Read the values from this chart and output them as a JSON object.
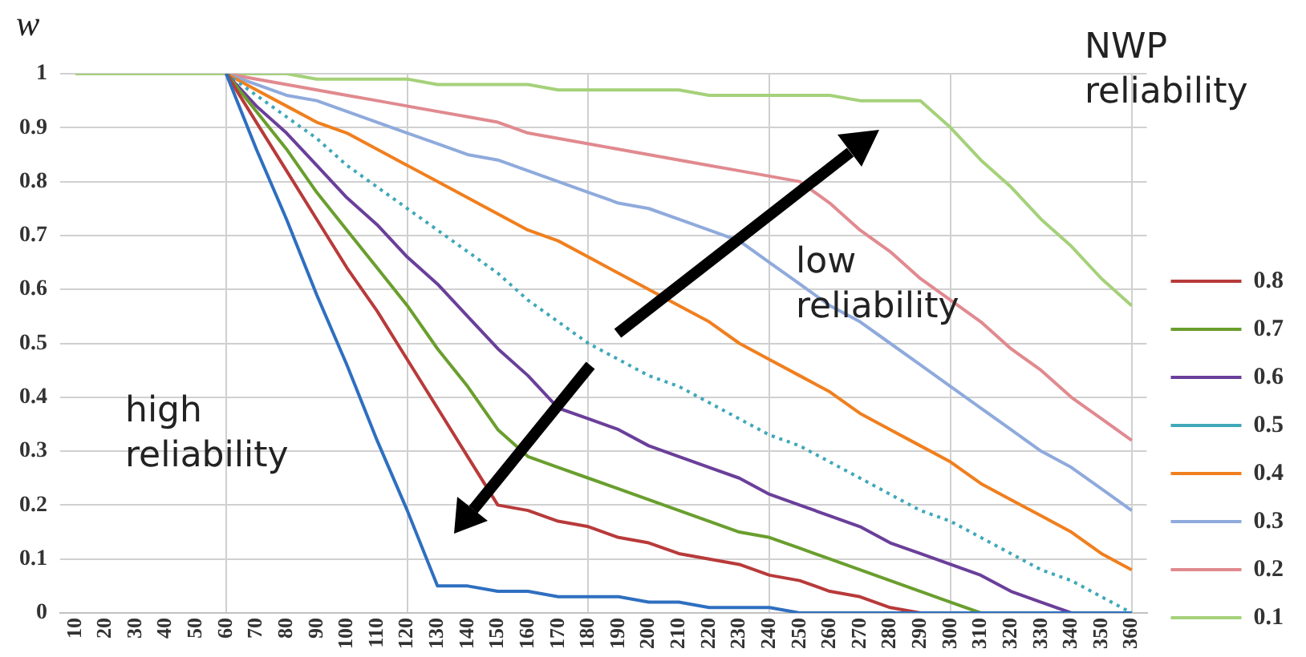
{
  "chart_data": {
    "type": "line",
    "ylabel": "w",
    "legend_title": "NWP reliability",
    "annotations": [
      "high reliability",
      "low reliability"
    ],
    "categories": [
      "10",
      "20",
      "30",
      "40",
      "50",
      "60",
      "70",
      "80",
      "90",
      "100",
      "110",
      "120",
      "130",
      "140",
      "150",
      "160",
      "170",
      "180",
      "190",
      "200",
      "210",
      "220",
      "230",
      "240",
      "250",
      "260",
      "270",
      "280",
      "290",
      "300",
      "310",
      "320",
      "330",
      "340",
      "350",
      "360"
    ],
    "series": [
      {
        "color": "#2e6fc0",
        "values": [
          null,
          null,
          null,
          null,
          null,
          1,
          0.86,
          0.73,
          0.59,
          0.46,
          0.32,
          0.19,
          0.05,
          0.05,
          0.04,
          0.04,
          0.03,
          0.03,
          0.03,
          0.02,
          0.02,
          0.01,
          0.01,
          0.01,
          0,
          0,
          0,
          0,
          0,
          0,
          0,
          0,
          0,
          0,
          0,
          0
        ]
      },
      {
        "name": "0.8",
        "color": "#b83a3a",
        "values": [
          null,
          null,
          null,
          null,
          null,
          1,
          0.91,
          0.82,
          0.73,
          0.64,
          0.56,
          0.47,
          0.38,
          0.29,
          0.2,
          0.19,
          0.17,
          0.16,
          0.14,
          0.13,
          0.11,
          0.1,
          0.09,
          0.07,
          0.06,
          0.04,
          0.03,
          0.01,
          0,
          null,
          null,
          null,
          null,
          null,
          null,
          null
        ]
      },
      {
        "name": "0.7",
        "color": "#6a9e2e",
        "values": [
          null,
          null,
          null,
          null,
          null,
          1,
          0.93,
          0.86,
          0.78,
          0.71,
          0.64,
          0.57,
          0.49,
          0.42,
          0.34,
          0.29,
          0.27,
          0.25,
          0.23,
          0.21,
          0.19,
          0.17,
          0.15,
          0.14,
          0.12,
          0.1,
          0.08,
          0.06,
          0.04,
          0.02,
          0,
          null,
          null,
          null,
          null,
          null
        ]
      },
      {
        "name": "0.6",
        "color": "#6a3f9a",
        "values": [
          null,
          null,
          null,
          null,
          null,
          1,
          0.94,
          0.89,
          0.83,
          0.77,
          0.72,
          0.66,
          0.61,
          0.55,
          0.49,
          0.44,
          0.38,
          0.36,
          0.34,
          0.31,
          0.29,
          0.27,
          0.25,
          0.22,
          0.2,
          0.18,
          0.16,
          0.13,
          0.11,
          0.09,
          0.07,
          0.04,
          0.02,
          0,
          null,
          null
        ]
      },
      {
        "name": "0.5",
        "color": "#3fa8b8",
        "line_style": "dotted",
        "values": [
          null,
          null,
          null,
          null,
          null,
          1,
          0.96,
          0.92,
          0.88,
          0.83,
          0.79,
          0.75,
          0.71,
          0.67,
          0.63,
          0.58,
          0.54,
          0.5,
          0.47,
          0.44,
          0.42,
          0.39,
          0.36,
          0.33,
          0.31,
          0.28,
          0.25,
          0.22,
          0.19,
          0.17,
          0.14,
          0.11,
          0.08,
          0.06,
          0.03,
          0
        ]
      },
      {
        "name": "0.4",
        "color": "#f07f1e",
        "values": [
          null,
          null,
          null,
          null,
          null,
          1,
          0.97,
          0.94,
          0.91,
          0.89,
          0.86,
          0.83,
          0.8,
          0.77,
          0.74,
          0.71,
          0.69,
          0.66,
          0.63,
          0.6,
          0.57,
          0.54,
          0.5,
          0.47,
          0.44,
          0.41,
          0.37,
          0.34,
          0.31,
          0.28,
          0.24,
          0.21,
          0.18,
          0.15,
          0.11,
          0.08
        ]
      },
      {
        "name": "0.3",
        "color": "#8faadc",
        "values": [
          null,
          null,
          null,
          null,
          null,
          1,
          0.98,
          0.96,
          0.95,
          0.93,
          0.91,
          0.89,
          0.87,
          0.85,
          0.84,
          0.82,
          0.8,
          0.78,
          0.76,
          0.75,
          0.73,
          0.71,
          0.69,
          0.65,
          0.61,
          0.57,
          0.54,
          0.5,
          0.46,
          0.42,
          0.38,
          0.34,
          0.3,
          0.27,
          0.23,
          0.19
        ]
      },
      {
        "name": "0.2",
        "color": "#e08a8f",
        "values": [
          null,
          null,
          null,
          null,
          null,
          1,
          0.99,
          0.98,
          0.97,
          0.96,
          0.95,
          0.94,
          0.93,
          0.92,
          0.91,
          0.89,
          0.88,
          0.87,
          0.86,
          0.85,
          0.84,
          0.83,
          0.82,
          0.81,
          0.8,
          0.76,
          0.71,
          0.67,
          0.62,
          0.58,
          0.54,
          0.49,
          0.45,
          0.4,
          0.36,
          0.32
        ]
      },
      {
        "name": "0.1",
        "color": "#a5d17a",
        "values": [
          1,
          1,
          1,
          1,
          1,
          1,
          1,
          1,
          0.99,
          0.99,
          0.99,
          0.99,
          0.98,
          0.98,
          0.98,
          0.98,
          0.97,
          0.97,
          0.97,
          0.97,
          0.97,
          0.96,
          0.96,
          0.96,
          0.96,
          0.96,
          0.95,
          0.95,
          0.95,
          0.9,
          0.84,
          0.79,
          0.73,
          0.68,
          0.62,
          0.57
        ]
      }
    ],
    "ylim": [
      0,
      1
    ],
    "yticks": [
      0,
      0.1,
      0.2,
      0.3,
      0.4,
      0.5,
      0.6,
      0.7,
      0.8,
      0.9,
      1
    ],
    "grid": true,
    "legend": "right",
    "marker": "none"
  }
}
